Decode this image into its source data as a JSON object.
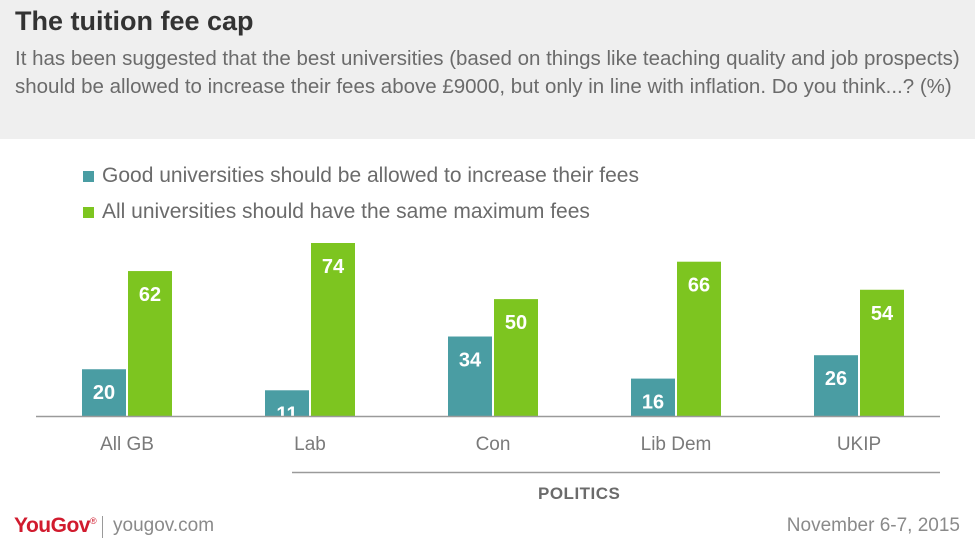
{
  "header": {
    "title": "The tuition fee cap",
    "subtitle": "It has been suggested that the best universities (based on things like teaching quality and job prospects) should be allowed to increase their fees above £9000, but only in line with inflation. Do you think...? (%)"
  },
  "colors": {
    "teal": "#4a9da3",
    "green": "#7dc520",
    "header_bg": "#efefef",
    "brand_red": "#d11b2e"
  },
  "chart_data": {
    "type": "bar",
    "categories": [
      "All GB",
      "Lab",
      "Con",
      "Lib Dem",
      "UKIP"
    ],
    "series": [
      {
        "name": "Good universities should be allowed to increase their fees",
        "color": "#4a9da3",
        "values": [
          20,
          11,
          34,
          16,
          26
        ]
      },
      {
        "name": "All universities should have the same maximum fees",
        "color": "#7dc520",
        "values": [
          62,
          74,
          50,
          66,
          54
        ]
      }
    ],
    "ylim": [
      0,
      74
    ],
    "grid": false,
    "legend_position": "top-left",
    "category_group": {
      "label": "POLITICS",
      "categories": [
        "Lab",
        "Con",
        "Lib Dem",
        "UKIP"
      ]
    }
  },
  "footer": {
    "brand": "YouGov",
    "brand_mark": "®",
    "site": "yougov.com",
    "date": "November 6-7, 2015"
  }
}
